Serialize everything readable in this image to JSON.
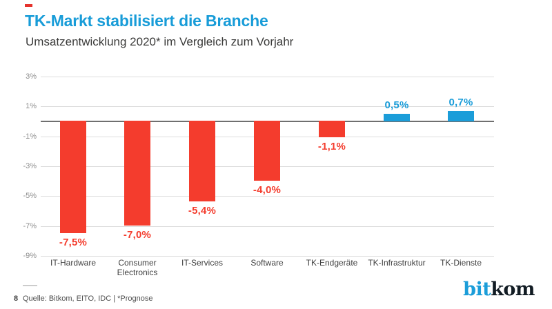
{
  "slide": {
    "title": "TK-Markt stabilisiert die Branche",
    "subtitle": "Umsatzentwicklung 2020* im Vergleich zum Vorjahr",
    "title_color": "#189cd8",
    "accent_dash_color": "#e5332d"
  },
  "chart_data": {
    "type": "bar",
    "categories": [
      "IT-Hardware",
      "Consumer Electronics",
      "IT-Services",
      "Software",
      "TK-Endgeräte",
      "TK-Infrastruktur",
      "TK-Dienste"
    ],
    "values": [
      -7.5,
      -7.0,
      -5.4,
      -4.0,
      -1.1,
      0.5,
      0.7
    ],
    "value_labels": [
      "-7,5%",
      "-7,0%",
      "-5,4%",
      "-4,0%",
      "-1,1%",
      "0,5%",
      "0,7%"
    ],
    "title": "TK-Markt stabilisiert die Branche",
    "subtitle": "Umsatzentwicklung 2020* im Vergleich zum Vorjahr",
    "xlabel": "",
    "ylabel": "",
    "ylim": [
      -9,
      3
    ],
    "yticks": [
      3,
      1,
      -1,
      -3,
      -5,
      -7,
      -9
    ],
    "ytick_labels": [
      "3%",
      "1%",
      "-1%",
      "-3%",
      "-5%",
      "-7%",
      "-9%"
    ],
    "grid": true,
    "legend": false,
    "negative_color": "#f43c2d",
    "positive_color": "#1b9dd9"
  },
  "footer": {
    "page_number": "8",
    "source": "Quelle: Bitkom, EITO, IDC | *Prognose",
    "logo_part1": "bit",
    "logo_part2": "kom",
    "logo_color1": "#1b9dd9",
    "logo_color2": "#121c24"
  }
}
